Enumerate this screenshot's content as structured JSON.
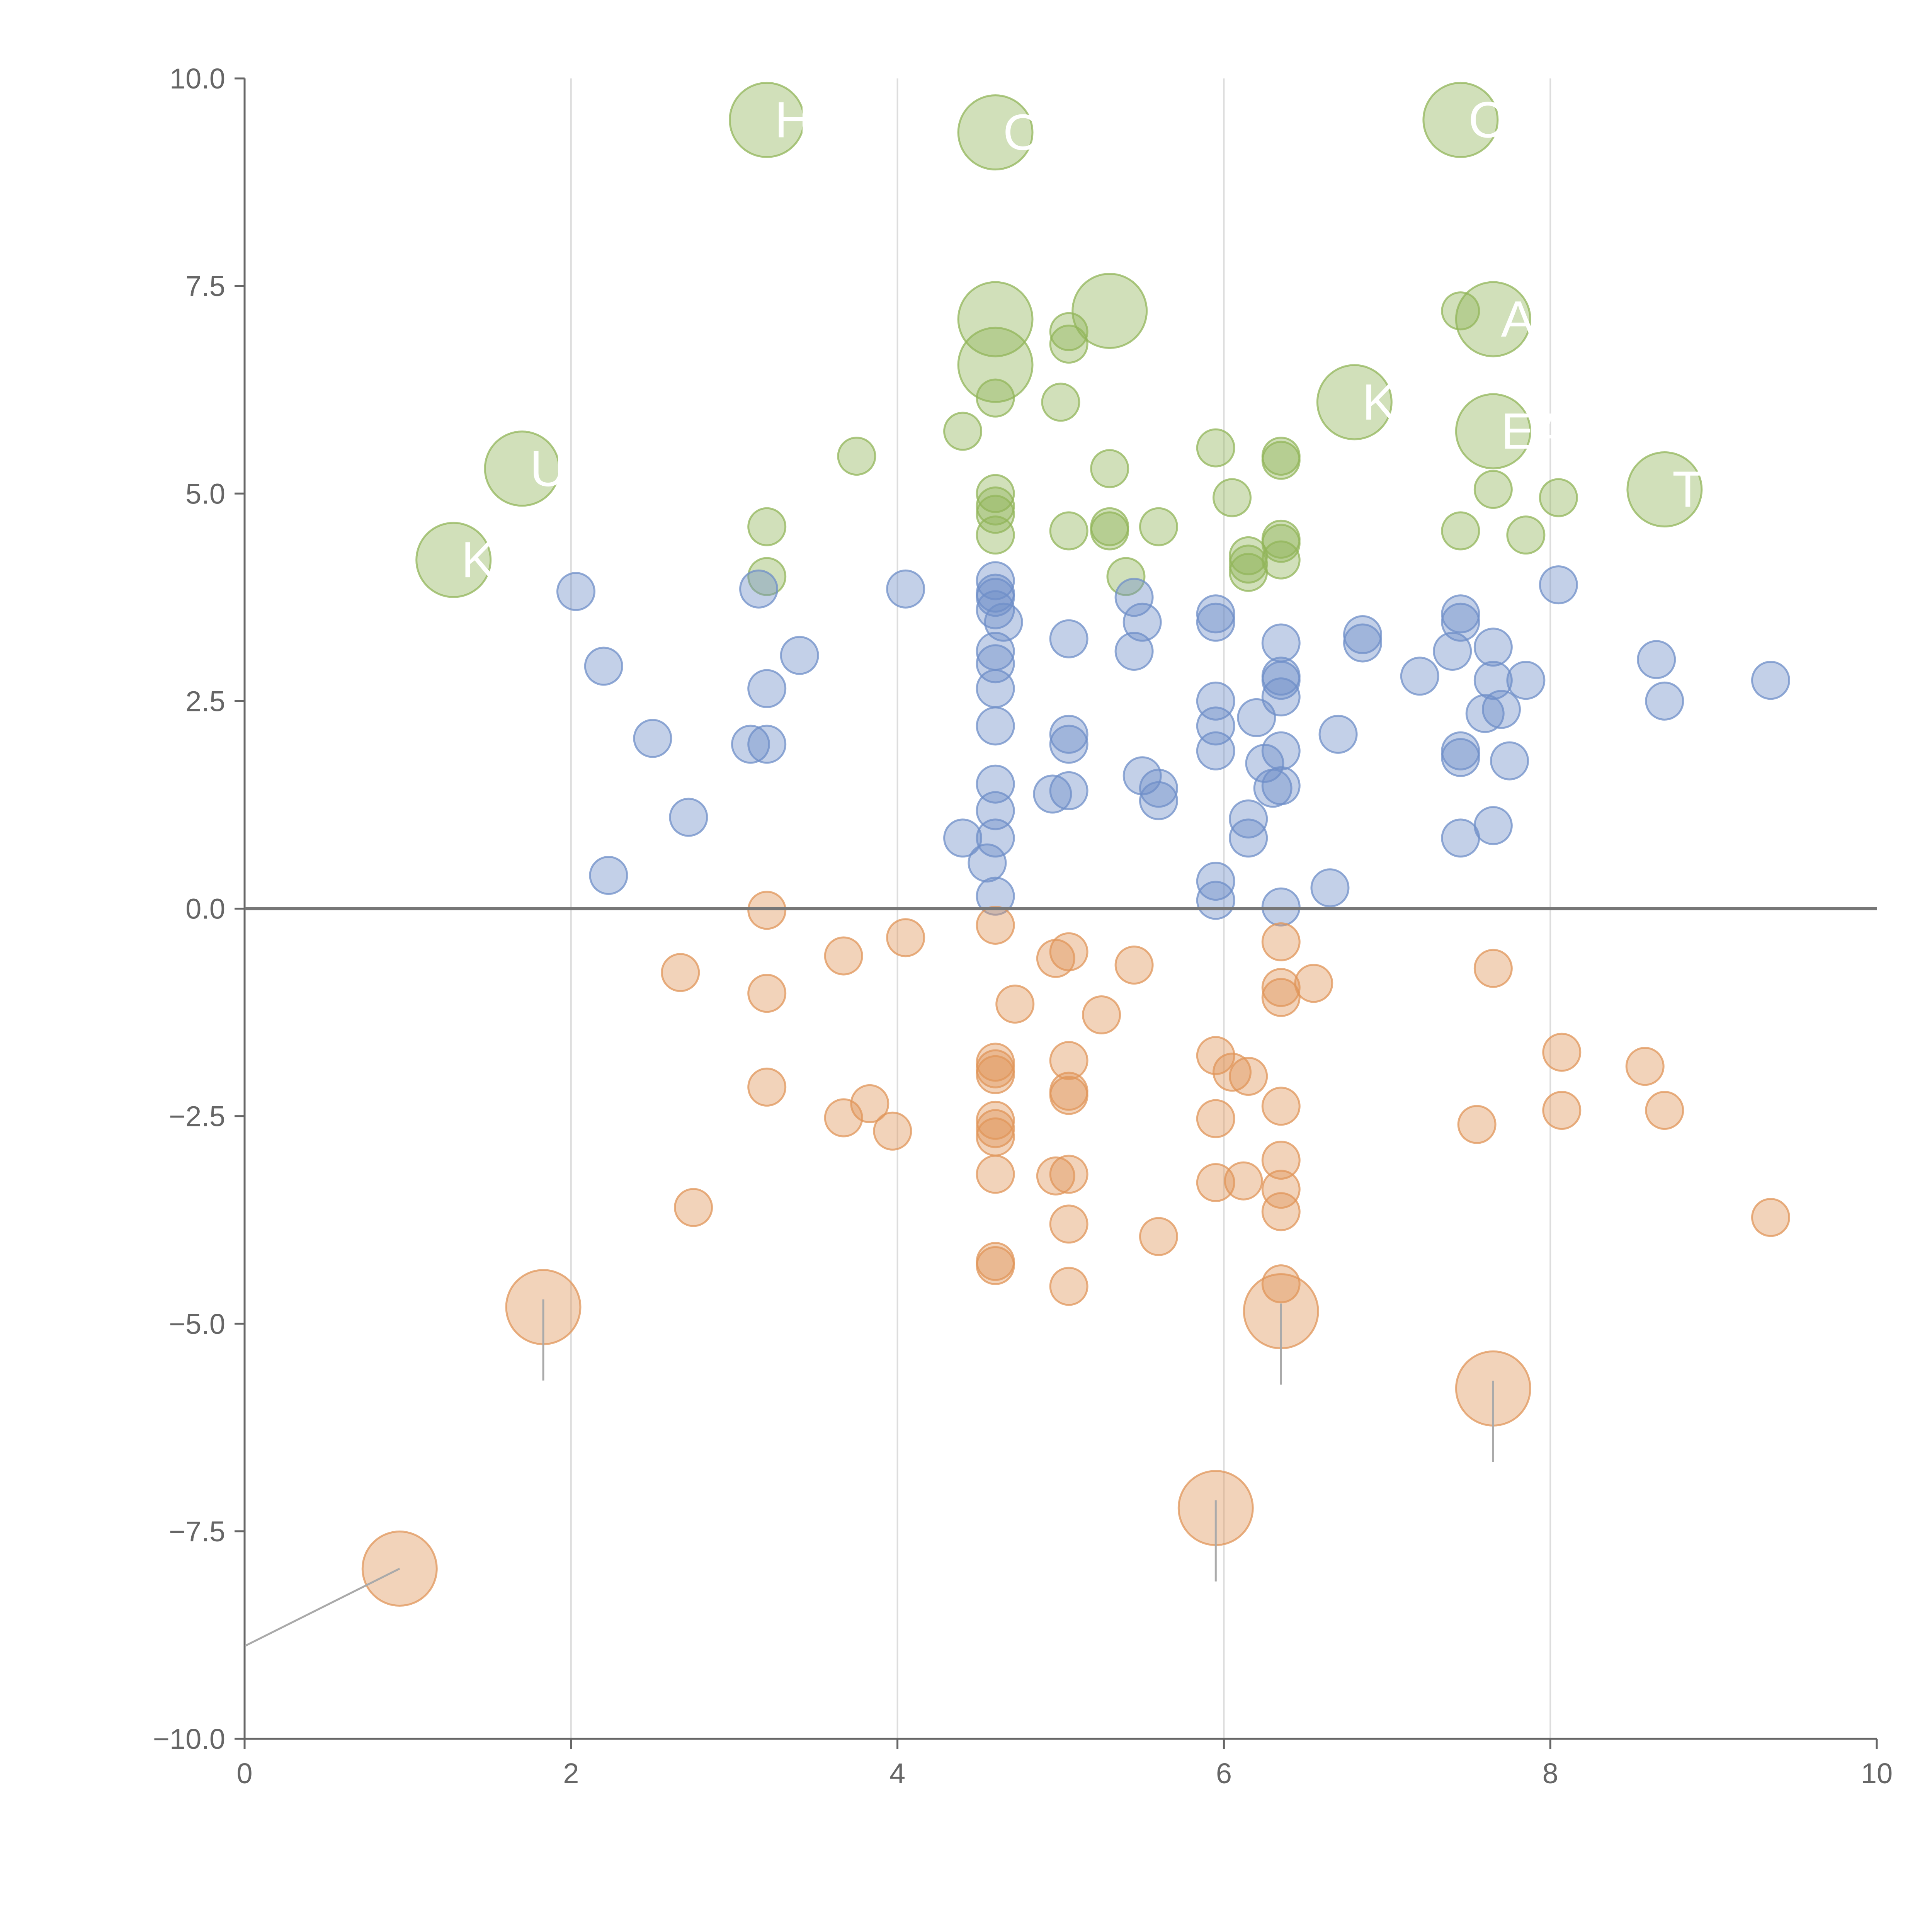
{
  "chart_data": {
    "type": "scatter",
    "title": "",
    "xlabel": "",
    "ylabel": "",
    "xlim": [
      0,
      10
    ],
    "ylim": [
      -10,
      10
    ],
    "x_ticks": [
      "0",
      "2",
      "4",
      "6",
      "8",
      "10"
    ],
    "y_ticks": [
      "−10.0",
      "−7.5",
      "−5.0",
      "−2.5",
      "0.0",
      "2.5",
      "5.0",
      "7.5",
      "10.0"
    ],
    "x_tick_values": [
      0,
      2,
      4,
      6,
      8,
      10
    ],
    "y_tick_values": [
      -10,
      -7.5,
      -5,
      -2.5,
      0,
      2.5,
      5,
      7.5,
      10
    ],
    "gridlines": "vertical",
    "zero_line": true,
    "colors": {
      "positive": "#92b55a",
      "neutral": "#6f8fc8",
      "negative": "#e0955a",
      "axis": "#666666",
      "grid": "#dddddd",
      "label": "#ffffff"
    },
    "series": [
      {
        "name": "positive",
        "color": "#92b55a",
        "points": [
          {
            "x": 3.2,
            "y": 9.5,
            "size": "large",
            "label": "HE"
          },
          {
            "x": 4.6,
            "y": 9.35,
            "size": "large",
            "label": "OW"
          },
          {
            "x": 7.45,
            "y": 9.5,
            "size": "large",
            "label": "C"
          },
          {
            "x": 4.6,
            "y": 7.1,
            "size": "large",
            "label": ""
          },
          {
            "x": 5.3,
            "y": 7.2,
            "size": "large",
            "label": ""
          },
          {
            "x": 4.6,
            "y": 6.55,
            "size": "large",
            "label": ""
          },
          {
            "x": 7.65,
            "y": 7.1,
            "size": "large",
            "label": "A"
          },
          {
            "x": 6.8,
            "y": 6.1,
            "size": "large",
            "label": "KE"
          },
          {
            "x": 7.65,
            "y": 5.75,
            "size": "large",
            "label": "EA"
          },
          {
            "x": 1.7,
            "y": 5.3,
            "size": "large",
            "label": "U"
          },
          {
            "x": 8.7,
            "y": 5.05,
            "size": "large",
            "label": "TS"
          },
          {
            "x": 1.28,
            "y": 4.2,
            "size": "large",
            "label": "KI"
          },
          {
            "x": 5.05,
            "y": 6.95,
            "size": "small"
          },
          {
            "x": 5.05,
            "y": 6.8,
            "size": "small"
          },
          {
            "x": 4.6,
            "y": 6.15,
            "size": "small"
          },
          {
            "x": 5.0,
            "y": 6.1,
            "size": "small"
          },
          {
            "x": 4.4,
            "y": 5.75,
            "size": "small"
          },
          {
            "x": 3.75,
            "y": 5.45,
            "size": "small"
          },
          {
            "x": 5.95,
            "y": 5.55,
            "size": "small"
          },
          {
            "x": 6.35,
            "y": 5.45,
            "size": "small"
          },
          {
            "x": 6.35,
            "y": 5.4,
            "size": "small"
          },
          {
            "x": 5.3,
            "y": 5.3,
            "size": "small"
          },
          {
            "x": 4.6,
            "y": 5.0,
            "size": "small"
          },
          {
            "x": 4.6,
            "y": 4.85,
            "size": "small"
          },
          {
            "x": 4.6,
            "y": 4.75,
            "size": "small"
          },
          {
            "x": 6.05,
            "y": 4.95,
            "size": "small"
          },
          {
            "x": 7.65,
            "y": 5.05,
            "size": "small"
          },
          {
            "x": 8.05,
            "y": 4.95,
            "size": "small"
          },
          {
            "x": 3.2,
            "y": 4.6,
            "size": "small"
          },
          {
            "x": 5.05,
            "y": 4.55,
            "size": "small"
          },
          {
            "x": 5.3,
            "y": 4.6,
            "size": "small"
          },
          {
            "x": 5.3,
            "y": 4.55,
            "size": "small"
          },
          {
            "x": 5.6,
            "y": 4.6,
            "size": "small"
          },
          {
            "x": 4.6,
            "y": 4.5,
            "size": "small"
          },
          {
            "x": 7.45,
            "y": 4.55,
            "size": "small"
          },
          {
            "x": 7.85,
            "y": 4.5,
            "size": "small"
          },
          {
            "x": 6.35,
            "y": 4.45,
            "size": "small"
          },
          {
            "x": 6.35,
            "y": 4.4,
            "size": "small"
          },
          {
            "x": 6.15,
            "y": 4.25,
            "size": "small"
          },
          {
            "x": 6.15,
            "y": 4.15,
            "size": "small"
          },
          {
            "x": 6.35,
            "y": 4.2,
            "size": "small"
          },
          {
            "x": 6.15,
            "y": 4.05,
            "size": "small"
          },
          {
            "x": 3.2,
            "y": 4.0,
            "size": "small"
          },
          {
            "x": 5.4,
            "y": 4.0,
            "size": "small"
          },
          {
            "x": 7.45,
            "y": 7.2,
            "size": "small"
          }
        ]
      },
      {
        "name": "neutral",
        "color": "#6f8fc8",
        "points": [
          {
            "x": 2.03,
            "y": 3.82
          },
          {
            "x": 3.15,
            "y": 3.85
          },
          {
            "x": 4.05,
            "y": 3.85
          },
          {
            "x": 4.6,
            "y": 3.95
          },
          {
            "x": 4.6,
            "y": 3.8
          },
          {
            "x": 4.6,
            "y": 3.75
          },
          {
            "x": 4.6,
            "y": 3.6
          },
          {
            "x": 4.65,
            "y": 3.45
          },
          {
            "x": 5.45,
            "y": 3.75
          },
          {
            "x": 5.5,
            "y": 3.45
          },
          {
            "x": 5.95,
            "y": 3.55
          },
          {
            "x": 5.95,
            "y": 3.45
          },
          {
            "x": 8.05,
            "y": 3.9
          },
          {
            "x": 7.45,
            "y": 3.55
          },
          {
            "x": 7.45,
            "y": 3.45
          },
          {
            "x": 6.85,
            "y": 3.3
          },
          {
            "x": 6.85,
            "y": 3.2
          },
          {
            "x": 7.65,
            "y": 3.15
          },
          {
            "x": 7.4,
            "y": 3.1
          },
          {
            "x": 5.05,
            "y": 3.25
          },
          {
            "x": 5.45,
            "y": 3.1
          },
          {
            "x": 6.35,
            "y": 3.2
          },
          {
            "x": 4.6,
            "y": 3.1
          },
          {
            "x": 4.6,
            "y": 2.95
          },
          {
            "x": 3.4,
            "y": 3.05
          },
          {
            "x": 2.2,
            "y": 2.92
          },
          {
            "x": 8.65,
            "y": 3.0
          },
          {
            "x": 6.35,
            "y": 2.8
          },
          {
            "x": 6.35,
            "y": 2.75
          },
          {
            "x": 7.2,
            "y": 2.8
          },
          {
            "x": 7.65,
            "y": 2.75
          },
          {
            "x": 7.85,
            "y": 2.75
          },
          {
            "x": 9.35,
            "y": 2.75
          },
          {
            "x": 3.2,
            "y": 2.65
          },
          {
            "x": 4.6,
            "y": 2.65
          },
          {
            "x": 6.35,
            "y": 2.55
          },
          {
            "x": 5.95,
            "y": 2.5
          },
          {
            "x": 8.7,
            "y": 2.5
          },
          {
            "x": 7.7,
            "y": 2.4
          },
          {
            "x": 7.6,
            "y": 2.35
          },
          {
            "x": 6.2,
            "y": 2.3
          },
          {
            "x": 5.95,
            "y": 2.2
          },
          {
            "x": 4.6,
            "y": 2.2
          },
          {
            "x": 6.7,
            "y": 2.1
          },
          {
            "x": 2.5,
            "y": 2.05
          },
          {
            "x": 5.05,
            "y": 2.1
          },
          {
            "x": 5.05,
            "y": 1.98
          },
          {
            "x": 3.1,
            "y": 1.98
          },
          {
            "x": 3.2,
            "y": 1.98
          },
          {
            "x": 5.95,
            "y": 1.9
          },
          {
            "x": 6.35,
            "y": 1.9
          },
          {
            "x": 7.45,
            "y": 1.9
          },
          {
            "x": 7.45,
            "y": 1.82
          },
          {
            "x": 7.75,
            "y": 1.78
          },
          {
            "x": 6.25,
            "y": 1.75
          },
          {
            "x": 5.5,
            "y": 1.6
          },
          {
            "x": 4.6,
            "y": 1.5
          },
          {
            "x": 6.35,
            "y": 1.48
          },
          {
            "x": 6.3,
            "y": 1.45
          },
          {
            "x": 5.6,
            "y": 1.45
          },
          {
            "x": 4.95,
            "y": 1.38
          },
          {
            "x": 5.05,
            "y": 1.42
          },
          {
            "x": 5.6,
            "y": 1.3
          },
          {
            "x": 4.6,
            "y": 1.18
          },
          {
            "x": 2.72,
            "y": 1.1
          },
          {
            "x": 6.15,
            "y": 1.08
          },
          {
            "x": 7.65,
            "y": 1.0
          },
          {
            "x": 4.4,
            "y": 0.85
          },
          {
            "x": 4.6,
            "y": 0.85
          },
          {
            "x": 6.15,
            "y": 0.85
          },
          {
            "x": 7.45,
            "y": 0.85
          },
          {
            "x": 4.55,
            "y": 0.55
          },
          {
            "x": 2.23,
            "y": 0.4
          },
          {
            "x": 5.95,
            "y": 0.33
          },
          {
            "x": 6.65,
            "y": 0.25
          },
          {
            "x": 4.6,
            "y": 0.15
          },
          {
            "x": 5.95,
            "y": 0.1
          },
          {
            "x": 6.35,
            "y": 0.02
          }
        ]
      },
      {
        "name": "negative",
        "color": "#e0955a",
        "points": [
          {
            "x": 3.2,
            "y": -0.02,
            "size": "small"
          },
          {
            "x": 4.6,
            "y": -0.2,
            "size": "small"
          },
          {
            "x": 4.05,
            "y": -0.35,
            "size": "small"
          },
          {
            "x": 6.35,
            "y": -0.4,
            "size": "small"
          },
          {
            "x": 3.67,
            "y": -0.57,
            "size": "small"
          },
          {
            "x": 4.97,
            "y": -0.6,
            "size": "small"
          },
          {
            "x": 5.05,
            "y": -0.52,
            "size": "small"
          },
          {
            "x": 5.45,
            "y": -0.68,
            "size": "small"
          },
          {
            "x": 7.65,
            "y": -0.72,
            "size": "small"
          },
          {
            "x": 2.67,
            "y": -0.77,
            "size": "small"
          },
          {
            "x": 6.55,
            "y": -0.9,
            "size": "small"
          },
          {
            "x": 6.35,
            "y": -0.95,
            "size": "small"
          },
          {
            "x": 3.2,
            "y": -1.02,
            "size": "small"
          },
          {
            "x": 6.35,
            "y": -1.07,
            "size": "small"
          },
          {
            "x": 4.72,
            "y": -1.15,
            "size": "small"
          },
          {
            "x": 5.25,
            "y": -1.28,
            "size": "small"
          },
          {
            "x": 8.07,
            "y": -1.73,
            "size": "small"
          },
          {
            "x": 5.95,
            "y": -1.77,
            "size": "small"
          },
          {
            "x": 5.05,
            "y": -1.83,
            "size": "small"
          },
          {
            "x": 4.6,
            "y": -1.85,
            "size": "small"
          },
          {
            "x": 4.6,
            "y": -1.93,
            "size": "small"
          },
          {
            "x": 8.58,
            "y": -1.9,
            "size": "small"
          },
          {
            "x": 6.05,
            "y": -1.97,
            "size": "small"
          },
          {
            "x": 4.6,
            "y": -2.0,
            "size": "small"
          },
          {
            "x": 6.15,
            "y": -2.02,
            "size": "small"
          },
          {
            "x": 3.2,
            "y": -2.15,
            "size": "small"
          },
          {
            "x": 5.05,
            "y": -2.2,
            "size": "small"
          },
          {
            "x": 5.05,
            "y": -2.25,
            "size": "small"
          },
          {
            "x": 3.83,
            "y": -2.35,
            "size": "small"
          },
          {
            "x": 6.35,
            "y": -2.38,
            "size": "small"
          },
          {
            "x": 8.07,
            "y": -2.43,
            "size": "small"
          },
          {
            "x": 8.7,
            "y": -2.43,
            "size": "small"
          },
          {
            "x": 3.67,
            "y": -2.52,
            "size": "small"
          },
          {
            "x": 5.95,
            "y": -2.53,
            "size": "small"
          },
          {
            "x": 4.6,
            "y": -2.55,
            "size": "small"
          },
          {
            "x": 7.55,
            "y": -2.6,
            "size": "small"
          },
          {
            "x": 4.6,
            "y": -2.65,
            "size": "small"
          },
          {
            "x": 3.97,
            "y": -2.68,
            "size": "small"
          },
          {
            "x": 4.6,
            "y": -2.75,
            "size": "small"
          },
          {
            "x": 6.35,
            "y": -3.03,
            "size": "small"
          },
          {
            "x": 4.6,
            "y": -3.2,
            "size": "small"
          },
          {
            "x": 4.97,
            "y": -3.22,
            "size": "small"
          },
          {
            "x": 5.05,
            "y": -3.2,
            "size": "small"
          },
          {
            "x": 5.95,
            "y": -3.3,
            "size": "small"
          },
          {
            "x": 6.12,
            "y": -3.28,
            "size": "small"
          },
          {
            "x": 6.35,
            "y": -3.38,
            "size": "small"
          },
          {
            "x": 2.75,
            "y": -3.6,
            "size": "small"
          },
          {
            "x": 6.35,
            "y": -3.65,
            "size": "small"
          },
          {
            "x": 9.35,
            "y": -3.72,
            "size": "small"
          },
          {
            "x": 5.05,
            "y": -3.8,
            "size": "small"
          },
          {
            "x": 5.6,
            "y": -3.95,
            "size": "small"
          },
          {
            "x": 4.6,
            "y": -4.25,
            "size": "small"
          },
          {
            "x": 4.6,
            "y": -4.3,
            "size": "small"
          },
          {
            "x": 6.35,
            "y": -4.52,
            "size": "small"
          },
          {
            "x": 5.05,
            "y": -4.55,
            "size": "small"
          },
          {
            "x": 1.83,
            "y": -4.8,
            "size": "large",
            "label": ""
          },
          {
            "x": 6.35,
            "y": -4.85,
            "size": "large",
            "label": ""
          },
          {
            "x": 7.65,
            "y": -5.78,
            "size": "large",
            "label": ""
          },
          {
            "x": 5.95,
            "y": -7.22,
            "size": "large",
            "label": ""
          },
          {
            "x": 0.95,
            "y": -7.95,
            "size": "large",
            "label": ""
          }
        ]
      }
    ]
  }
}
